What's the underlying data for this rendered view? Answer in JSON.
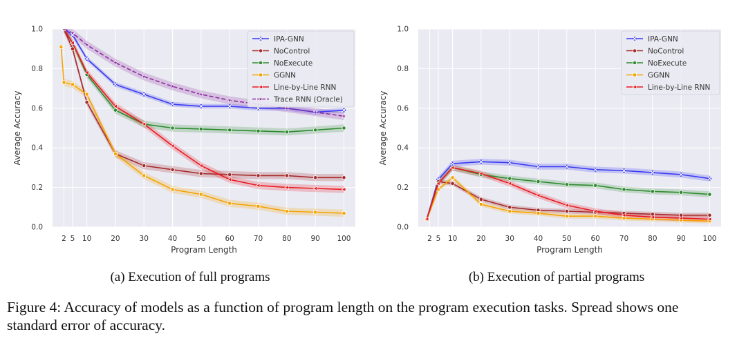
{
  "colors": {
    "panel_bg": "#eaeaf2",
    "grid": "#ffffff",
    "IPA-GNN": "#3b3bf2",
    "NoControl": "#a52a2a",
    "NoExecute": "#2e8b2e",
    "GGNN": "#f5a300",
    "Line-by-Line RNN": "#e8191e",
    "Trace RNN (Oracle)": "#8b2c9e"
  },
  "chart_data": [
    {
      "type": "line",
      "subcaption": "(a) Execution of full programs",
      "xlabel": "Program Length",
      "ylabel": "Average Accuracy",
      "xlim": [
        -2,
        104
      ],
      "ylim": [
        0,
        1.0
      ],
      "xticks": [
        2,
        5,
        10,
        20,
        30,
        40,
        50,
        60,
        70,
        80,
        90,
        100
      ],
      "yticks": [
        0.0,
        0.2,
        0.4,
        0.6,
        0.8,
        1.0
      ],
      "legend": "top-right",
      "grid": true,
      "x": [
        1,
        2,
        5,
        10,
        20,
        30,
        40,
        50,
        60,
        70,
        80,
        90,
        100
      ],
      "series": [
        {
          "name": "IPA-GNN",
          "marker": "x",
          "dashed": false,
          "err": 0.012,
          "values": [
            null,
            1.0,
            0.97,
            0.85,
            0.72,
            0.67,
            0.62,
            0.61,
            0.61,
            0.6,
            0.6,
            0.58,
            0.59
          ]
        },
        {
          "name": "NoControl",
          "marker": "o",
          "dashed": false,
          "err": 0.018,
          "values": [
            null,
            1.0,
            0.9,
            0.63,
            0.37,
            0.31,
            0.29,
            0.27,
            0.265,
            0.26,
            0.26,
            0.25,
            0.25
          ]
        },
        {
          "name": "NoExecute",
          "marker": "o",
          "dashed": false,
          "err": 0.018,
          "values": [
            null,
            1.0,
            0.93,
            0.77,
            0.59,
            0.52,
            0.5,
            0.495,
            0.49,
            0.485,
            0.48,
            0.49,
            0.5
          ]
        },
        {
          "name": "GGNN",
          "marker": "s",
          "dashed": false,
          "err": 0.018,
          "values": [
            0.91,
            0.73,
            0.72,
            0.67,
            0.37,
            0.26,
            0.19,
            0.165,
            0.12,
            0.105,
            0.08,
            0.075,
            0.07
          ]
        },
        {
          "name": "Line-by-Line RNN",
          "marker": "<",
          "dashed": false,
          "err": 0.018,
          "values": [
            null,
            1.0,
            0.93,
            0.78,
            0.61,
            0.52,
            0.41,
            0.31,
            0.24,
            0.21,
            0.2,
            0.195,
            0.19
          ]
        },
        {
          "name": "Trace RNN (Oracle)",
          "marker": "*",
          "dashed": true,
          "err": 0.02,
          "values": [
            null,
            1.0,
            0.98,
            0.92,
            0.83,
            0.76,
            0.71,
            0.67,
            0.64,
            0.62,
            0.6,
            0.58,
            0.56
          ]
        }
      ]
    },
    {
      "type": "line",
      "subcaption": "(b) Execution of partial programs",
      "xlabel": "Program Length",
      "ylabel": "Average Accuracy",
      "xlim": [
        -2,
        104
      ],
      "ylim": [
        0,
        1.0
      ],
      "xticks": [
        2,
        5,
        10,
        20,
        30,
        40,
        50,
        60,
        70,
        80,
        90,
        100
      ],
      "yticks": [
        0.0,
        0.2,
        0.4,
        0.6,
        0.8,
        1.0
      ],
      "legend": "top-right",
      "grid": true,
      "x": [
        1,
        5,
        10,
        20,
        30,
        40,
        50,
        60,
        70,
        80,
        90,
        100
      ],
      "series": [
        {
          "name": "IPA-GNN",
          "marker": "x",
          "dashed": false,
          "err": 0.015,
          "values": [
            0.04,
            0.24,
            0.32,
            0.33,
            0.325,
            0.305,
            0.305,
            0.29,
            0.285,
            0.275,
            0.265,
            0.245
          ]
        },
        {
          "name": "NoControl",
          "marker": "o",
          "dashed": false,
          "err": 0.012,
          "values": [
            0.04,
            0.23,
            0.22,
            0.14,
            0.1,
            0.085,
            0.08,
            0.075,
            0.07,
            0.065,
            0.06,
            0.06
          ]
        },
        {
          "name": "NoExecute",
          "marker": "o",
          "dashed": false,
          "err": 0.015,
          "values": [
            0.04,
            0.22,
            0.3,
            0.265,
            0.245,
            0.23,
            0.215,
            0.21,
            0.19,
            0.18,
            0.175,
            0.165
          ]
        },
        {
          "name": "GGNN",
          "marker": "s",
          "dashed": false,
          "err": 0.012,
          "values": [
            0.04,
            0.19,
            0.25,
            0.115,
            0.08,
            0.07,
            0.055,
            0.055,
            0.045,
            0.04,
            0.035,
            0.03
          ]
        },
        {
          "name": "Line-by-Line RNN",
          "marker": "<",
          "dashed": false,
          "err": 0.015,
          "values": [
            0.04,
            0.22,
            0.3,
            0.27,
            0.22,
            0.16,
            0.11,
            0.08,
            0.06,
            0.05,
            0.045,
            0.04
          ]
        }
      ]
    }
  ],
  "caption": "Figure 4: Accuracy of models as a function of program length on the program execution tasks. Spread shows one standard error of accuracy."
}
